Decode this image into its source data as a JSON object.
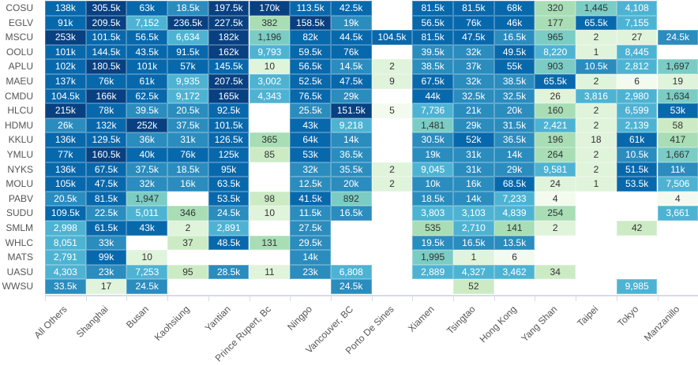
{
  "chart_data": {
    "type": "heatmap",
    "x_categories": [
      "All Others",
      "Shanghai",
      "Busan",
      "Kaohsiung",
      "Yantian",
      "Prince Rupert, Bc",
      "Ningpo",
      "Vancouver, BC",
      "Porto De Sines",
      "Xiamen",
      "Tsingtao",
      "Hong Kong",
      "Yang Shan",
      "Taipei",
      "Tokyo",
      "Manzanillo"
    ],
    "y_categories": [
      "COSU",
      "EGLV",
      "MSCU",
      "OOLU",
      "APLU",
      "MAEU",
      "CMDU",
      "HLCU",
      "HDMU",
      "KKLU",
      "YMLU",
      "NYKS",
      "MOLU",
      "PABV",
      "SUDU",
      "SMLM",
      "WHLC",
      "MATS",
      "UASU",
      "WWSU"
    ],
    "values": [
      [
        138000,
        305500,
        63000,
        18500,
        197500,
        170000,
        113500,
        42500,
        null,
        81500,
        81500,
        68000,
        320,
        1445,
        4108,
        null
      ],
      [
        91000,
        209500,
        7152,
        236500,
        227500,
        382,
        158500,
        19000,
        null,
        56500,
        76000,
        46000,
        177,
        65500,
        7155,
        null
      ],
      [
        253000,
        101500,
        56500,
        6634,
        182000,
        1196,
        82000,
        44500,
        104500,
        81500,
        47500,
        16500,
        965,
        2,
        27,
        24500
      ],
      [
        101000,
        144500,
        43500,
        91500,
        162000,
        9793,
        59500,
        76000,
        null,
        39500,
        32000,
        49500,
        8220,
        1,
        8445,
        null
      ],
      [
        102000,
        180500,
        101000,
        57000,
        145500,
        10,
        56500,
        14500,
        2,
        38500,
        37000,
        55000,
        903,
        10500,
        2812,
        1697
      ],
      [
        137000,
        76000,
        61000,
        9935,
        207500,
        3002,
        52500,
        47500,
        9,
        67500,
        32000,
        38500,
        65500,
        2,
        6,
        19
      ],
      [
        104500,
        166000,
        62500,
        9172,
        165000,
        4343,
        76500,
        29000,
        null,
        44000,
        32500,
        32500,
        26,
        3816,
        2980,
        1634
      ],
      [
        215000,
        78000,
        39500,
        20500,
        92500,
        null,
        25500,
        151500,
        5,
        7736,
        21000,
        20000,
        160,
        2,
        6599,
        53000
      ],
      [
        26000,
        132000,
        252000,
        37500,
        101500,
        null,
        43000,
        9218,
        null,
        1481,
        29000,
        31500,
        2421,
        2,
        2139,
        58
      ],
      [
        136000,
        129500,
        36000,
        31000,
        126500,
        365,
        64000,
        14000,
        null,
        30500,
        52000,
        36500,
        196,
        18,
        61000,
        417
      ],
      [
        77000,
        160500,
        40000,
        76000,
        125000,
        85,
        53000,
        36500,
        null,
        19000,
        31000,
        14000,
        264,
        2,
        10500,
        1667
      ],
      [
        136000,
        67500,
        37500,
        18500,
        95000,
        null,
        32000,
        35500,
        2,
        9045,
        31000,
        29000,
        9581,
        2,
        51500,
        11000
      ],
      [
        105000,
        47500,
        32000,
        16000,
        63500,
        null,
        12500,
        20000,
        2,
        10000,
        16000,
        68500,
        24,
        1,
        53500,
        7506
      ],
      [
        20500,
        81500,
        1947,
        null,
        53500,
        98,
        41500,
        892,
        null,
        18500,
        14000,
        7233,
        4,
        null,
        null,
        4
      ],
      [
        109500,
        22500,
        5011,
        346,
        24500,
        10,
        11500,
        16500,
        null,
        3803,
        3103,
        4839,
        254,
        null,
        null,
        3661
      ],
      [
        2998,
        61500,
        43000,
        2,
        2891,
        null,
        27500,
        null,
        null,
        535,
        2710,
        141,
        2,
        null,
        42,
        null
      ],
      [
        8051,
        33000,
        null,
        37,
        48500,
        131,
        29500,
        null,
        null,
        19500,
        16500,
        13500,
        null,
        null,
        null,
        null
      ],
      [
        2791,
        99000,
        10,
        null,
        null,
        null,
        14000,
        null,
        null,
        1995,
        1,
        6,
        null,
        null,
        null,
        null
      ],
      [
        4303,
        23000,
        7253,
        95,
        28500,
        11,
        23000,
        6808,
        null,
        2889,
        4327,
        3462,
        34,
        null,
        null,
        null
      ],
      [
        33500,
        17,
        24500,
        null,
        null,
        null,
        null,
        24500,
        null,
        null,
        52,
        null,
        null,
        null,
        9985,
        null
      ]
    ],
    "color_scale": [
      "#f3fbef",
      "#e0f3db",
      "#ccebc5",
      "#a8ddb5",
      "#7bccc4",
      "#4eb3d3",
      "#2b8cbe",
      "#0868ac",
      "#084081"
    ],
    "legend": "none",
    "grid": false
  }
}
